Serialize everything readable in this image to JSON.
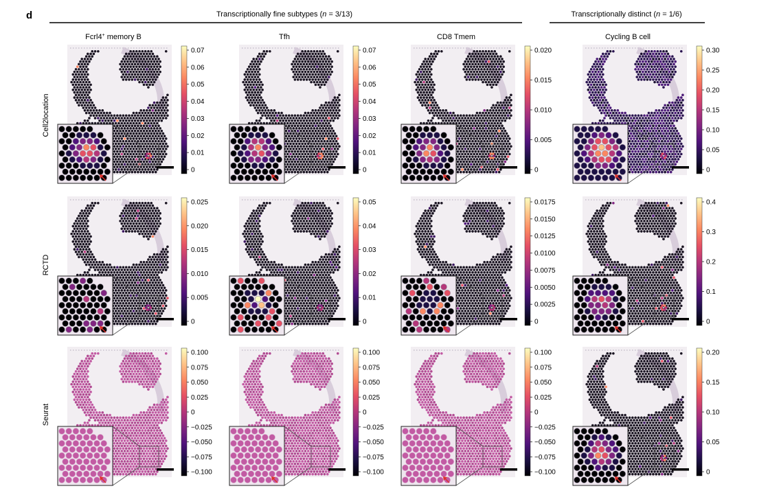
{
  "panel_letter": "d",
  "groups": [
    {
      "title_pre": "Transcriptionally fine subtypes (",
      "title_n": "n",
      "title_post": " = 3/13)"
    },
    {
      "title_pre": "Transcriptionally distinct (",
      "title_n": "n",
      "title_post": " = 1/6)"
    }
  ],
  "columns": [
    {
      "label": "Fcrl4",
      "sup": "+",
      "label_rest": " memory B"
    },
    {
      "label": "Tfh",
      "sup": "",
      "label_rest": ""
    },
    {
      "label": "CD8 Tmem",
      "sup": "",
      "label_rest": ""
    },
    {
      "label": "Cycling B cell",
      "sup": "",
      "label_rest": ""
    }
  ],
  "rows": [
    {
      "label": "Cell2location"
    },
    {
      "label": "RCTD"
    },
    {
      "label": "Seurat"
    }
  ],
  "colorbar_colors": [
    "#000004",
    "#1c1044",
    "#4f127b",
    "#812581",
    "#b5367a",
    "#e55064",
    "#fb8761",
    "#fec287",
    "#fcfdbf"
  ],
  "panels": [
    {
      "row": 0,
      "col": 0,
      "mode": "dark",
      "cluster": 0.9,
      "ticks": [
        "0.07",
        "0.06",
        "0.05",
        "0.04",
        "0.03",
        "0.02",
        "0.01",
        "0"
      ]
    },
    {
      "row": 0,
      "col": 1,
      "mode": "dark",
      "cluster": 0.9,
      "ticks": [
        "0.07",
        "0.06",
        "0.05",
        "0.04",
        "0.03",
        "0.02",
        "0.01",
        "0"
      ]
    },
    {
      "row": 0,
      "col": 2,
      "mode": "dark",
      "cluster": 0.9,
      "ticks": [
        "0.020",
        "0.015",
        "0.010",
        "0.005",
        "0"
      ]
    },
    {
      "row": 0,
      "col": 3,
      "mode": "purple",
      "cluster": 0.9,
      "ticks": [
        "0.30",
        "0.25",
        "0.20",
        "0.15",
        "0.10",
        "0.05",
        "0"
      ]
    },
    {
      "row": 1,
      "col": 0,
      "mode": "dark",
      "cluster": 0.15,
      "ticks": [
        "0.025",
        "0.020",
        "0.015",
        "0.010",
        "0.005",
        "0"
      ]
    },
    {
      "row": 1,
      "col": 1,
      "mode": "dark",
      "cluster": 0.35,
      "ticks": [
        "0.05",
        "0.04",
        "0.03",
        "0.02",
        "0.01",
        "0"
      ]
    },
    {
      "row": 1,
      "col": 2,
      "mode": "dark",
      "cluster": 0.3,
      "ticks": [
        "0.0175",
        "0.0150",
        "0.0125",
        "0.0100",
        "0.0075",
        "0.0050",
        "0.0025",
        "0"
      ]
    },
    {
      "row": 1,
      "col": 3,
      "mode": "dark",
      "cluster": 0.85,
      "ticks": [
        "0.4",
        "0.3",
        "0.2",
        "0.1",
        "0"
      ]
    },
    {
      "row": 2,
      "col": 0,
      "mode": "pink",
      "cluster": 0,
      "ticks": [
        "0.100",
        "0.075",
        "0.050",
        "0.025",
        "0",
        "−0.025",
        "−0.050",
        "−0.075",
        "−0.100"
      ]
    },
    {
      "row": 2,
      "col": 1,
      "mode": "pink",
      "cluster": 0,
      "ticks": [
        "0.100",
        "0.075",
        "0.050",
        "0.025",
        "0",
        "−0.025",
        "−0.050",
        "−0.075",
        "−0.100"
      ]
    },
    {
      "row": 2,
      "col": 2,
      "mode": "pink",
      "cluster": 0,
      "ticks": [
        "0.100",
        "0.075",
        "0.050",
        "0.025",
        "0",
        "−0.025",
        "−0.050",
        "−0.075",
        "−0.100"
      ]
    },
    {
      "row": 2,
      "col": 3,
      "mode": "dark",
      "cluster": 0.9,
      "ticks": [
        "0.20",
        "0.15",
        "0.10",
        "0.05",
        "0"
      ]
    }
  ]
}
